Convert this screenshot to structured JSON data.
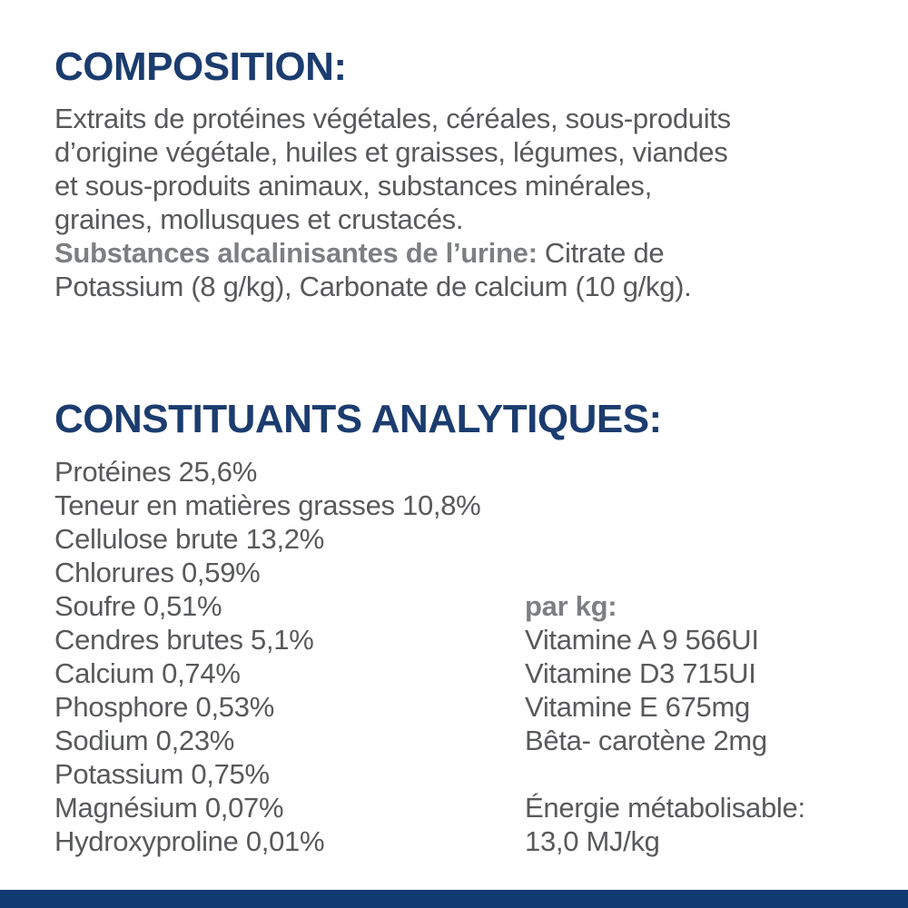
{
  "page": {
    "background_color": "#ffffff",
    "heading_color": "#1b3c6e",
    "body_text_color": "#58595b",
    "bold_label_color": "#7d7f82",
    "bottom_bar_color": "#123a73"
  },
  "composition": {
    "heading": "COMPOSITION:",
    "lines": [
      "Extraits de protéines végétales, céréales, sous-produits",
      "d’origine végétale, huiles et graisses, légumes, viandes",
      "et sous-produits animaux, substances minérales,",
      "graines, mollusques et crustacés."
    ],
    "urine_label": "Substances alcalinisantes de l’urine:",
    "urine_text_line1": " Citrate de",
    "urine_text_line2": "Potassium (8 g/kg), Carbonate de calcium (10 g/kg)."
  },
  "analytical": {
    "heading": "CONSTITUANTS ANALYTIQUES:",
    "left_items": [
      "Protéines 25,6%",
      "Teneur en matières grasses 10,8%",
      "Cellulose brute 13,2%",
      "Chlorures 0,59%",
      "Soufre 0,51%",
      "Cendres brutes 5,1%",
      "Calcium 0,74%",
      "Phosphore 0,53%",
      "Sodium 0,23%",
      "Potassium 0,75%",
      "Magnésium 0,07%",
      "Hydroxyproline 0,01%"
    ],
    "per_kg_label": "par kg:",
    "per_kg_items": [
      "Vitamine A 9 566UI",
      "Vitamine D3 715UI",
      "Vitamine E 675mg",
      "Bêta- carotène 2mg"
    ],
    "energy_label": "Énergie métabolisable:",
    "energy_value": "13,0 MJ/kg"
  }
}
